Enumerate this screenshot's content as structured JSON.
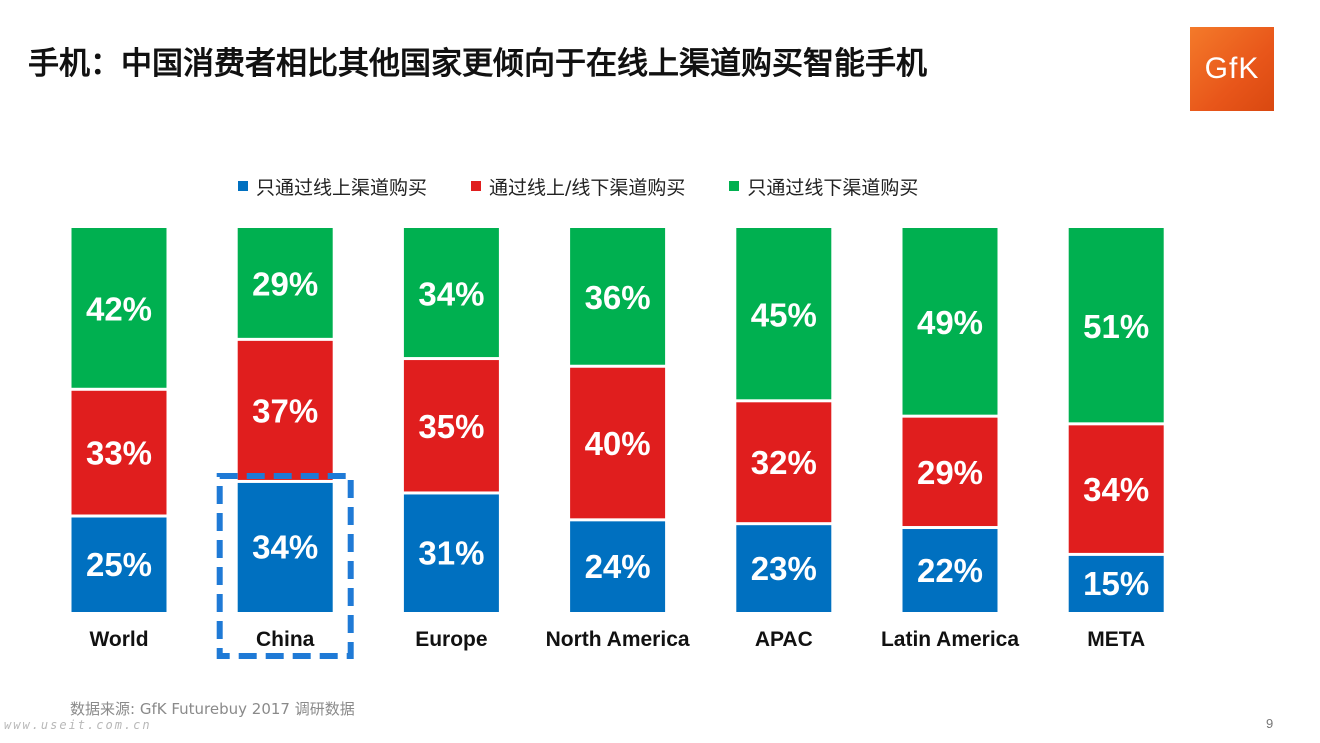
{
  "slide": {
    "title": "手机：中国消费者相比其他国家更倾向于在线上渠道购买智能手机",
    "logo_text": "GfK",
    "source": "数据来源: GfK Futurebuy 2017 调研数据",
    "watermark": "www.useit.com.cn",
    "page_number": "9"
  },
  "legend": [
    {
      "label": "只通过线上渠道购买",
      "color": "#0070c0"
    },
    {
      "label": "通过线上/线下渠道购买",
      "color": "#e01e1e"
    },
    {
      "label": "只通过线下渠道购买",
      "color": "#00b050"
    }
  ],
  "highlight": {
    "category": "China",
    "color": "#1f7ad6"
  },
  "chart_data": {
    "type": "bar",
    "stacked": true,
    "percent": true,
    "categories": [
      "World",
      "China",
      "Europe",
      "North America",
      "APAC",
      "Latin America",
      "META"
    ],
    "series": [
      {
        "name": "只通过线上渠道购买",
        "color": "#0070c0",
        "values": [
          25,
          34,
          31,
          24,
          23,
          22,
          15
        ],
        "labels": [
          "25%",
          "34%",
          "31%",
          "24%",
          "23%",
          "22%",
          "15%"
        ]
      },
      {
        "name": "通过线上/线下渠道购买",
        "color": "#e01e1e",
        "values": [
          33,
          37,
          35,
          40,
          32,
          29,
          34
        ],
        "labels": [
          "33%",
          "37%",
          "35%",
          "40%",
          "32%",
          "29%",
          "34%"
        ]
      },
      {
        "name": "只通过线下渠道购买",
        "color": "#00b050",
        "values": [
          42,
          29,
          34,
          36,
          45,
          49,
          51
        ],
        "labels": [
          "42%",
          "29%",
          "34%",
          "36%",
          "45%",
          "49%",
          "51%"
        ]
      }
    ],
    "ylim": [
      0,
      100
    ],
    "grid": false,
    "legend_position": "top"
  }
}
